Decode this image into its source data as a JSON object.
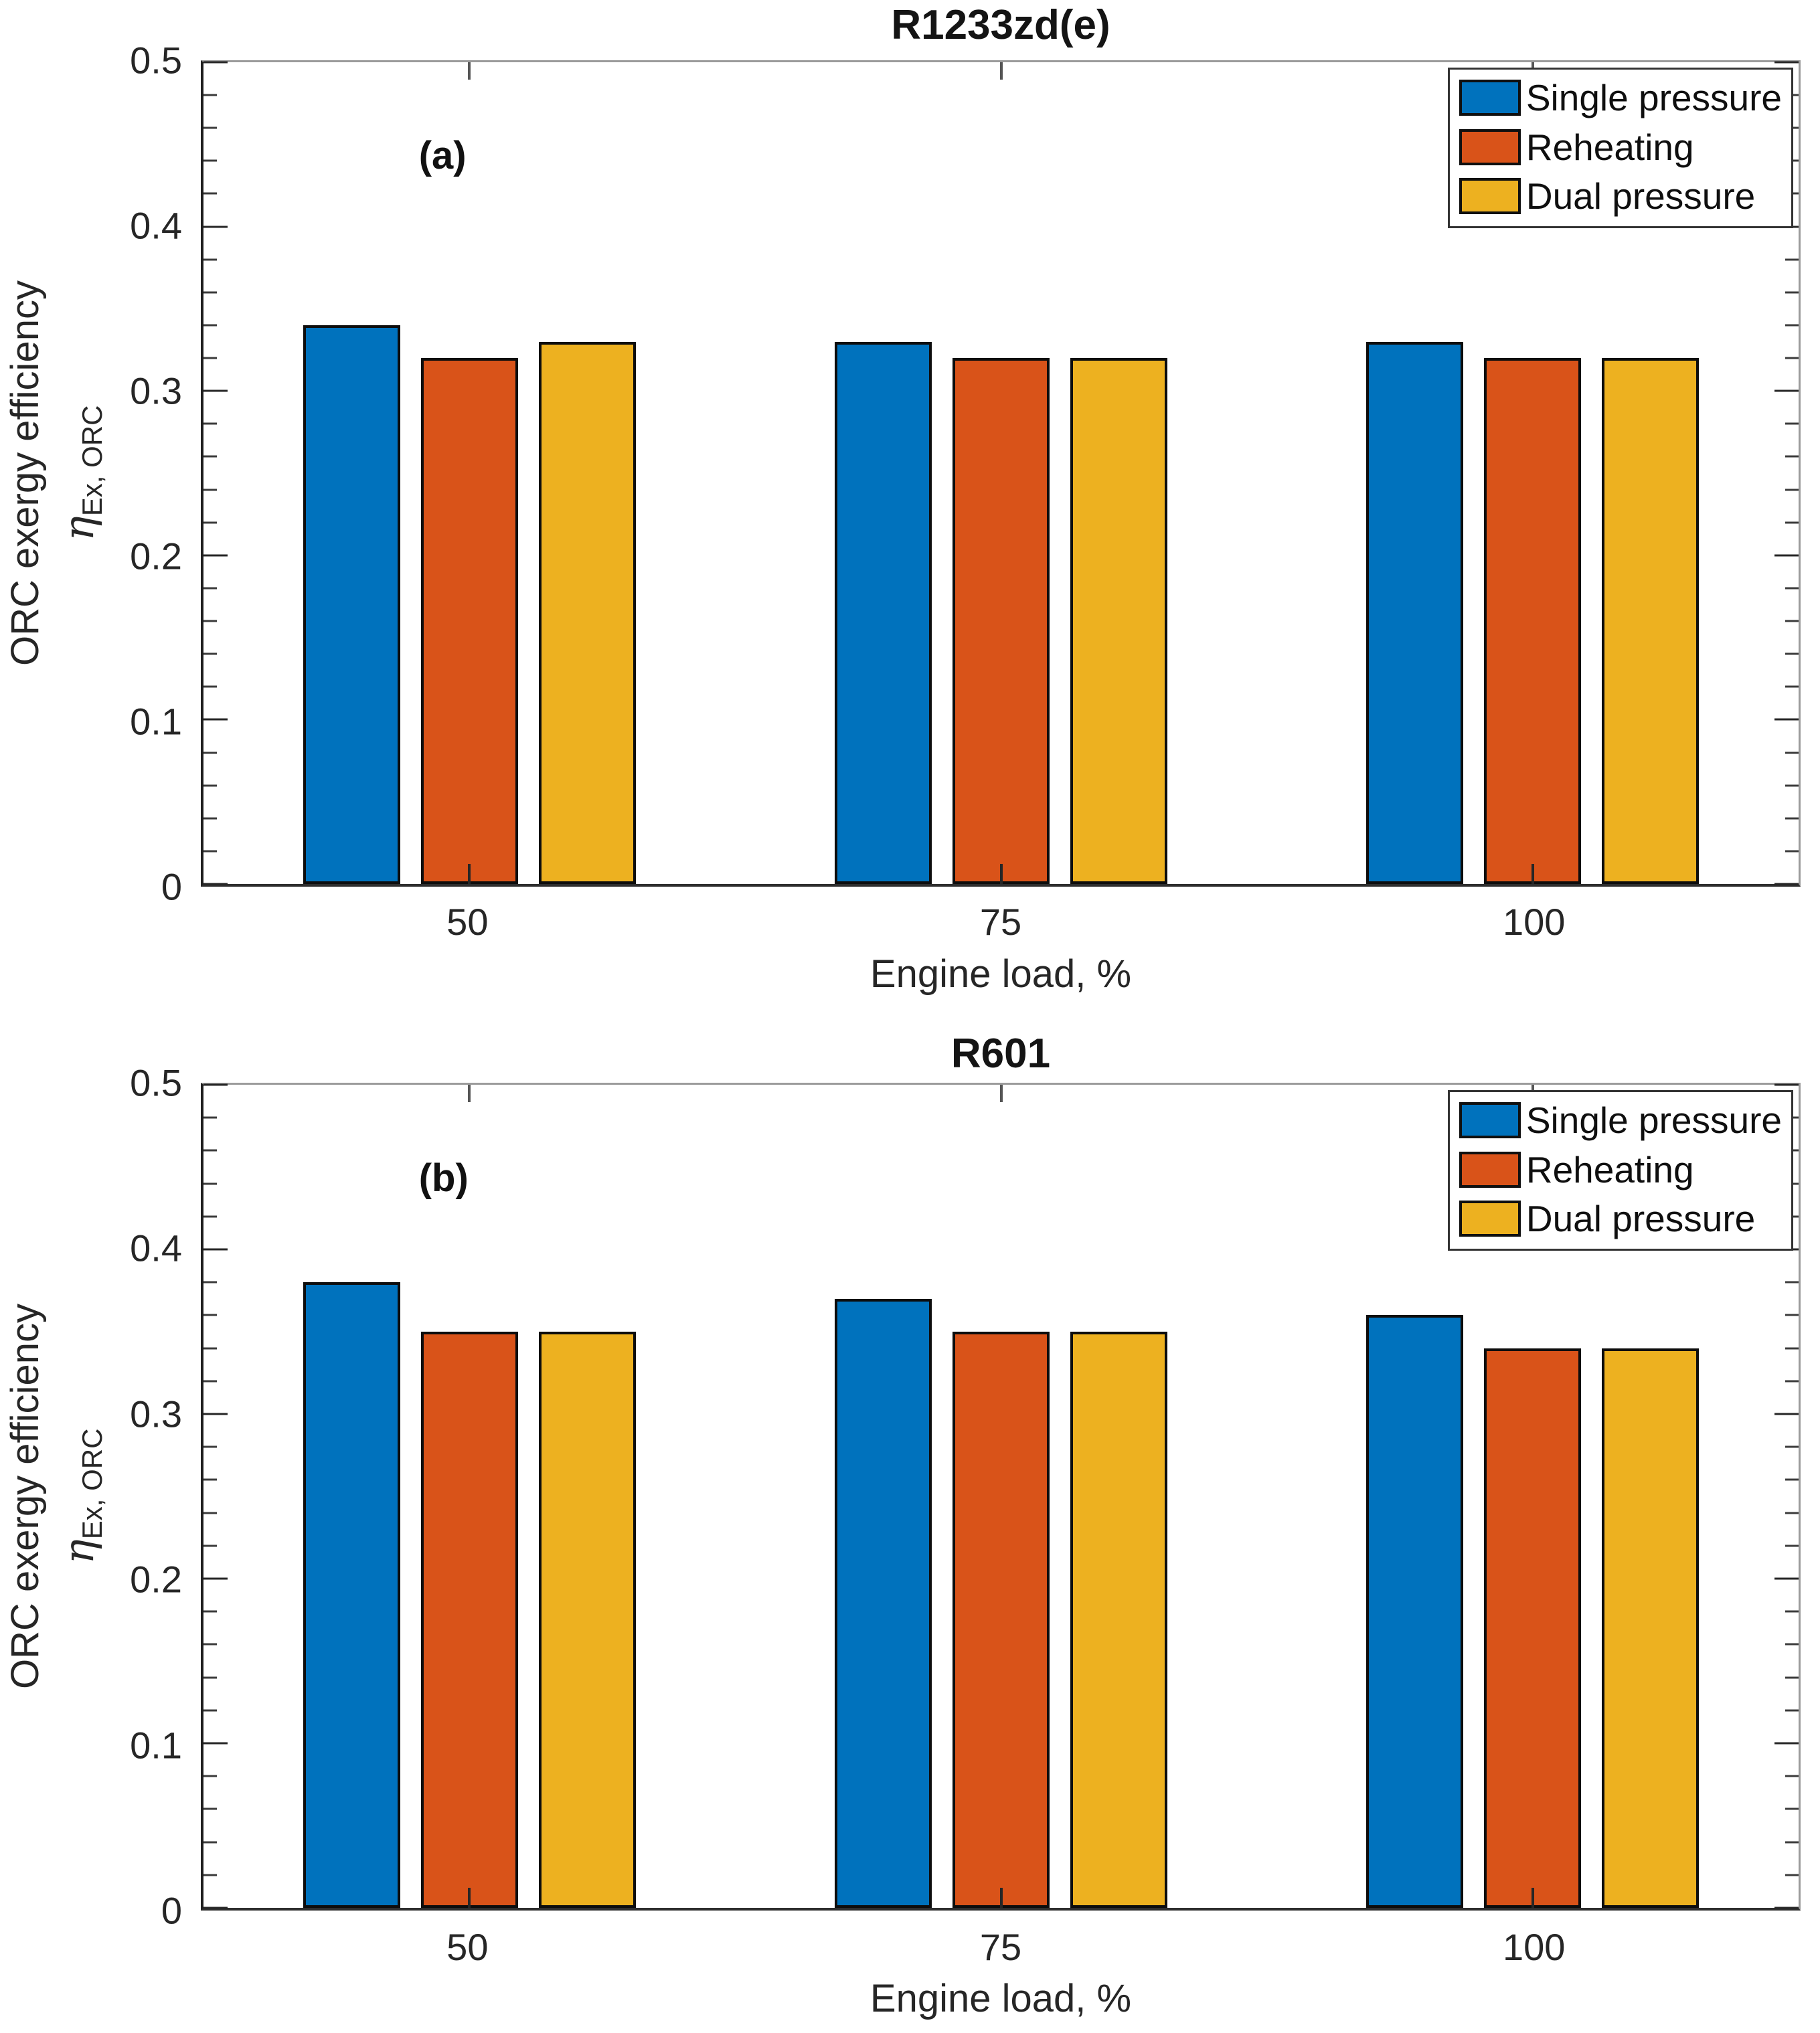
{
  "chart_data": [
    {
      "type": "bar",
      "title": "R1233zd(e)",
      "panel_label": "(a)",
      "xlabel": "Engine load, %",
      "ylabel": "ORC exergy efficiency",
      "ylabel_symbol": "η",
      "ylabel_symbol_sub": "Ex, ORC",
      "categories": [
        "50",
        "75",
        "100"
      ],
      "series": [
        {
          "name": "Single pressure",
          "color": "#0072BD",
          "values": [
            0.34,
            0.33,
            0.33
          ]
        },
        {
          "name": "Reheating",
          "color": "#D95319",
          "values": [
            0.32,
            0.32,
            0.32
          ]
        },
        {
          "name": "Dual pressure",
          "color": "#EDB120",
          "values": [
            0.33,
            0.32,
            0.32
          ]
        }
      ],
      "ylim": [
        0,
        0.5
      ],
      "yticks": [
        0,
        0.1,
        0.2,
        0.3,
        0.4,
        0.5
      ],
      "ytick_labels": [
        "0",
        "0.1",
        "0.2",
        "0.3",
        "0.4",
        "0.5"
      ],
      "yminor_step": 0.02,
      "grid": false,
      "legend_position": "top-right"
    },
    {
      "type": "bar",
      "title": "R601",
      "panel_label": "(b)",
      "xlabel": "Engine load, %",
      "ylabel": "ORC exergy efficiency",
      "ylabel_symbol": "η",
      "ylabel_symbol_sub": "Ex, ORC",
      "categories": [
        "50",
        "75",
        "100"
      ],
      "series": [
        {
          "name": "Single pressure",
          "color": "#0072BD",
          "values": [
            0.38,
            0.37,
            0.36
          ]
        },
        {
          "name": "Reheating",
          "color": "#D95319",
          "values": [
            0.35,
            0.35,
            0.34
          ]
        },
        {
          "name": "Dual pressure",
          "color": "#EDB120",
          "values": [
            0.35,
            0.35,
            0.34
          ]
        }
      ],
      "ylim": [
        0,
        0.5
      ],
      "yticks": [
        0,
        0.1,
        0.2,
        0.3,
        0.4,
        0.5
      ],
      "ytick_labels": [
        "0",
        "0.1",
        "0.2",
        "0.3",
        "0.4",
        "0.5"
      ],
      "yminor_step": 0.02,
      "grid": false,
      "legend_position": "top-right"
    }
  ]
}
